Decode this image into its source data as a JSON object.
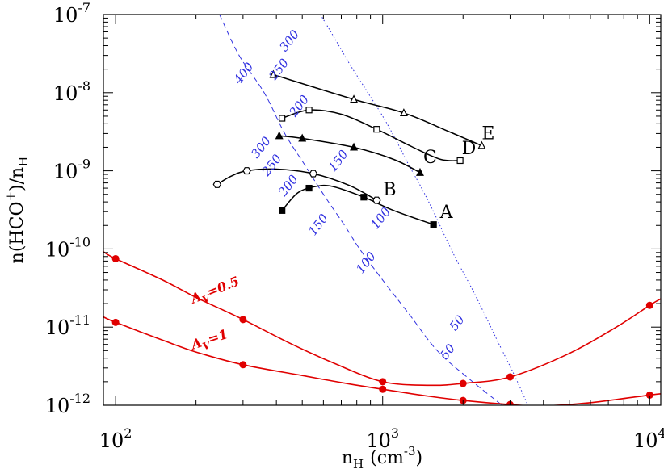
{
  "chart_data": {
    "type": "scatter",
    "xscale": "log",
    "yscale": "log",
    "xlim": [
      90,
      11000
    ],
    "ylim": [
      1e-12,
      1e-07
    ],
    "xlabel": {
      "base": "n",
      "sub": "H",
      "unit": "(cm",
      "unit_sup": "-3",
      "close": ")"
    },
    "ylabel": {
      "pre": "n(HCO",
      "sup": "+",
      "post": ")/n",
      "sub": "H"
    },
    "x_ticks": [
      {
        "value": 100,
        "exp": "2"
      },
      {
        "value": 1000,
        "exp": "3"
      },
      {
        "value": 10000,
        "exp": "4"
      }
    ],
    "y_ticks": [
      {
        "value": 1e-07,
        "exp": "-7"
      },
      {
        "value": 1e-08,
        "exp": "-8"
      },
      {
        "value": 1e-09,
        "exp": "-9"
      },
      {
        "value": 1e-10,
        "exp": "-10"
      },
      {
        "value": 1e-11,
        "exp": "-11"
      },
      {
        "value": 1e-12,
        "exp": "-12"
      }
    ],
    "tick_base": "10",
    "models": [
      {
        "name": "A",
        "marker": "filled-square",
        "color": "#000000",
        "points": [
          [
            420,
            3.1e-10
          ],
          [
            530,
            6e-10
          ],
          [
            850,
            4.6e-10
          ],
          [
            1550,
            2.05e-10
          ]
        ],
        "curve": [
          [
            420,
            3.1e-10
          ],
          [
            480,
            5.2e-10
          ],
          [
            560,
            6.3e-10
          ],
          [
            650,
            6.3e-10
          ],
          [
            850,
            4.6e-10
          ],
          [
            1100,
            3.1e-10
          ],
          [
            1550,
            2.05e-10
          ]
        ]
      },
      {
        "name": "B",
        "marker": "open-hexagon",
        "color": "#000000",
        "points": [
          [
            240,
            6.7e-10
          ],
          [
            310,
            1e-09
          ],
          [
            550,
            9.2e-10
          ],
          [
            950,
            4.2e-10
          ]
        ],
        "curve": [
          [
            240,
            6.7e-10
          ],
          [
            270,
            8.5e-10
          ],
          [
            310,
            1e-09
          ],
          [
            400,
            1.05e-09
          ],
          [
            550,
            9.2e-10
          ],
          [
            750,
            6.5e-10
          ],
          [
            950,
            4.2e-10
          ]
        ]
      },
      {
        "name": "C",
        "marker": "filled-triangle",
        "color": "#000000",
        "points": [
          [
            410,
            2.8e-09
          ],
          [
            500,
            2.6e-09
          ],
          [
            780,
            2e-09
          ],
          [
            1380,
            9.5e-10
          ]
        ],
        "curve": [
          [
            410,
            2.8e-09
          ],
          [
            500,
            2.6e-09
          ],
          [
            780,
            2e-09
          ],
          [
            1100,
            1.4e-09
          ],
          [
            1380,
            9.5e-10
          ]
        ]
      },
      {
        "name": "D",
        "marker": "open-square",
        "color": "#000000",
        "points": [
          [
            420,
            4.7e-09
          ],
          [
            530,
            6e-09
          ],
          [
            950,
            3.4e-09
          ],
          [
            1950,
            1.35e-09
          ]
        ],
        "curve": [
          [
            420,
            4.7e-09
          ],
          [
            530,
            6e-09
          ],
          [
            700,
            5.3e-09
          ],
          [
            950,
            3.4e-09
          ],
          [
            1300,
            2e-09
          ],
          [
            1650,
            1.4e-09
          ],
          [
            1950,
            1.35e-09
          ]
        ]
      },
      {
        "name": "E",
        "marker": "open-triangle",
        "color": "#000000",
        "points": [
          [
            390,
            1.7e-08
          ],
          [
            780,
            8.2e-09
          ],
          [
            1200,
            5.5e-09
          ],
          [
            2350,
            2.1e-09
          ]
        ],
        "curve": [
          [
            390,
            1.7e-08
          ],
          [
            780,
            8.2e-09
          ],
          [
            1200,
            5.5e-09
          ],
          [
            1800,
            3.1e-09
          ],
          [
            2350,
            2.1e-09
          ]
        ]
      }
    ],
    "av_curves": [
      {
        "name": "A_V=0.5",
        "label": "A",
        "label_sub": "V",
        "label_value": "=0.5",
        "color": "#e00000",
        "points": [
          [
            100,
            7.5e-11
          ],
          [
            300,
            1.25e-11
          ],
          [
            1000,
            2e-12
          ],
          [
            2000,
            1.9e-12
          ],
          [
            3000,
            2.3e-12
          ],
          [
            10000,
            1.9e-11
          ]
        ],
        "curve": [
          [
            90,
            9.2e-11
          ],
          [
            100,
            7.5e-11
          ],
          [
            150,
            4e-11
          ],
          [
            200,
            2.4e-11
          ],
          [
            300,
            1.25e-11
          ],
          [
            450,
            6.2e-12
          ],
          [
            650,
            3.5e-12
          ],
          [
            1000,
            2e-12
          ],
          [
            1500,
            1.8e-12
          ],
          [
            2000,
            1.9e-12
          ],
          [
            3000,
            2.3e-12
          ],
          [
            5000,
            4.6e-12
          ],
          [
            7500,
            1e-11
          ],
          [
            10000,
            1.9e-11
          ],
          [
            11000,
            2.3e-11
          ]
        ]
      },
      {
        "name": "A_V=1",
        "label": "A",
        "label_sub": "V",
        "label_value": "=1",
        "color": "#e00000",
        "points": [
          [
            100,
            1.15e-11
          ],
          [
            300,
            3.3e-12
          ],
          [
            1000,
            1.6e-12
          ],
          [
            2000,
            1.15e-12
          ],
          [
            3000,
            1.02e-12
          ],
          [
            10000,
            1.35e-12
          ]
        ],
        "curve": [
          [
            90,
            1.35e-11
          ],
          [
            100,
            1.15e-11
          ],
          [
            150,
            6.8e-12
          ],
          [
            200,
            4.8e-12
          ],
          [
            300,
            3.3e-12
          ],
          [
            500,
            2.4e-12
          ],
          [
            700,
            1.95e-12
          ],
          [
            1000,
            1.6e-12
          ],
          [
            1500,
            1.3e-12
          ],
          [
            2000,
            1.15e-12
          ],
          [
            3000,
            1.02e-12
          ],
          [
            4000,
            9.8e-13
          ],
          [
            6000,
            1.08e-12
          ],
          [
            10000,
            1.35e-12
          ],
          [
            11000,
            1.4e-12
          ]
        ]
      }
    ],
    "contours": [
      {
        "style": "dashed",
        "color": "#3030e0",
        "curve": [
          [
            245,
            1e-07
          ],
          [
            290,
            3e-08
          ],
          [
            360,
            1e-08
          ],
          [
            430,
            3e-09
          ],
          [
            510,
            1.2e-09
          ],
          [
            600,
            5e-10
          ],
          [
            720,
            2e-10
          ],
          [
            820,
            1e-10
          ],
          [
            1000,
            4e-11
          ],
          [
            1250,
            1.5e-11
          ],
          [
            1600,
            5e-12
          ],
          [
            2100,
            2.2e-12
          ],
          [
            2800,
            1e-12
          ]
        ],
        "labels": [
          {
            "text": "400",
            "at": [
              310,
              1.65e-08
            ]
          },
          {
            "text": "300",
            "at": [
              360,
              1.85e-09
            ]
          },
          {
            "text": "250",
            "at": [
              395,
              1.1e-09
            ]
          },
          {
            "text": "200",
            "at": [
              455,
              6e-10
            ]
          },
          {
            "text": "150",
            "at": [
              590,
              1.9e-10
            ]
          },
          {
            "text": "100",
            "at": [
              890,
              6.2e-11
            ]
          },
          {
            "text": "50",
            "at": [
              1800,
              4.5e-12
            ]
          }
        ]
      },
      {
        "style": "dotted",
        "color": "#3030e0",
        "curve": [
          [
            585,
            1e-07
          ],
          [
            660,
            5e-08
          ],
          [
            760,
            2.2e-08
          ],
          [
            880,
            1e-08
          ],
          [
            1000,
            5e-09
          ],
          [
            1120,
            2.5e-09
          ],
          [
            1250,
            1.2e-09
          ],
          [
            1400,
            6e-10
          ],
          [
            1550,
            3e-10
          ],
          [
            1720,
            1.4e-10
          ],
          [
            1900,
            7e-11
          ],
          [
            2150,
            3.2e-11
          ],
          [
            2400,
            1.5e-11
          ],
          [
            2700,
            6.5e-12
          ],
          [
            3100,
            2.5e-12
          ],
          [
            3500,
            1e-12
          ]
        ],
        "labels": [
          {
            "text": "300",
            "at": [
              460,
              4.3e-08
            ]
          },
          {
            "text": "250",
            "at": [
              420,
              1.85e-08
            ]
          },
          {
            "text": "200",
            "at": [
              500,
              6.3e-09
            ]
          },
          {
            "text": "150",
            "at": [
              700,
              1.25e-09
            ]
          },
          {
            "text": "100",
            "at": [
              1010,
              2.3e-10
            ]
          },
          {
            "text": "50",
            "at": [
              1950,
              1.05e-11
            ]
          }
        ]
      }
    ]
  }
}
